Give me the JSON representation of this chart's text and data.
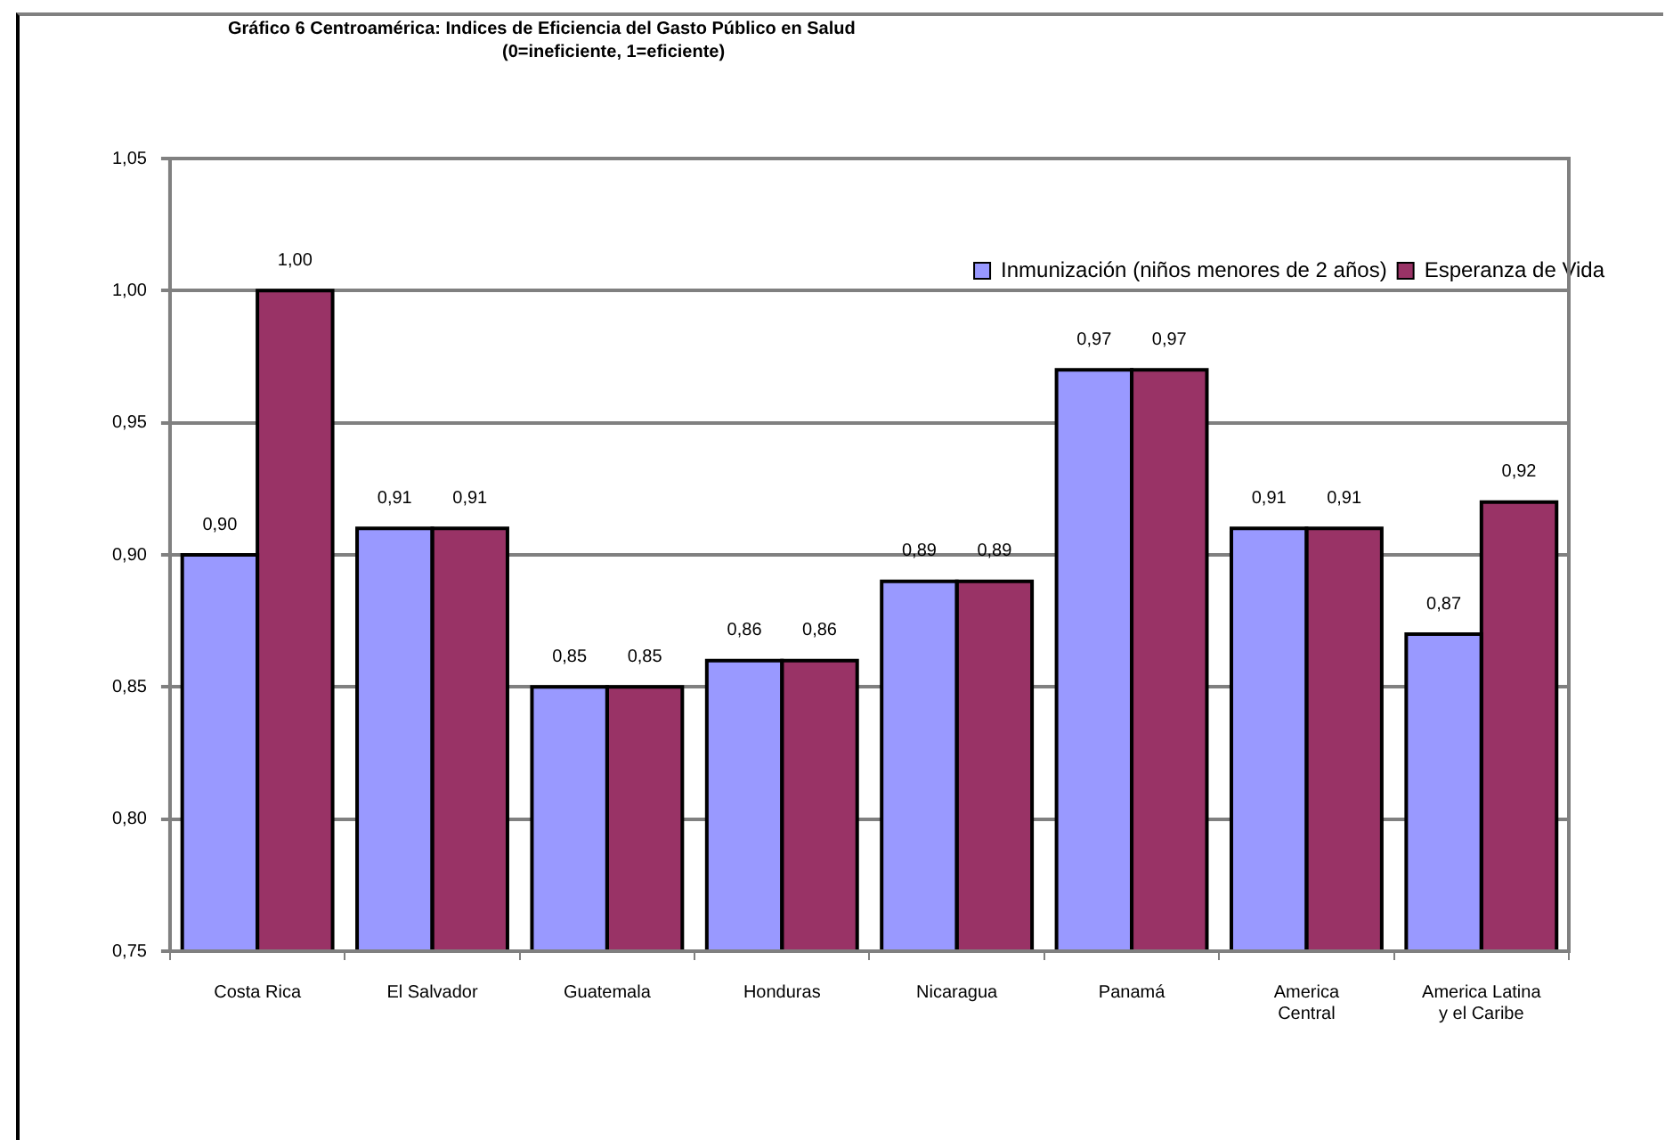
{
  "chart_data": {
    "type": "bar",
    "title": "Gráfico 6 Centroamérica: Indices de Eficiencia del Gasto Público en Salud",
    "subtitle": "(0=ineficiente, 1=eficiente)",
    "categories": [
      "Costa Rica",
      "El Salvador",
      "Guatemala",
      "Honduras",
      "Nicaragua",
      "Panamá",
      "America Central",
      "America Latina y el Caribe"
    ],
    "series": [
      {
        "name": "Inmunización (niños menores de 2 años)",
        "color": "#9999ff",
        "values": [
          0.9,
          0.91,
          0.85,
          0.86,
          0.89,
          0.97,
          0.91,
          0.87
        ],
        "value_labels": [
          "0,90",
          "0,91",
          "0,85",
          "0,86",
          "0,89",
          "0,97",
          "0,91",
          "0,87"
        ]
      },
      {
        "name": "Esperanza de Vida",
        "color": "#993366",
        "values": [
          1.0,
          0.91,
          0.85,
          0.86,
          0.89,
          0.97,
          0.91,
          0.92
        ],
        "value_labels": [
          "1,00",
          "0,91",
          "0,85",
          "0,86",
          "0,89",
          "0,97",
          "0,91",
          "0,92"
        ]
      }
    ],
    "ylim": [
      0.75,
      1.05
    ],
    "yticks": [
      {
        "value": 0.75,
        "label": "0,75"
      },
      {
        "value": 0.8,
        "label": "0,80"
      },
      {
        "value": 0.85,
        "label": "0,85"
      },
      {
        "value": 0.9,
        "label": "0,90"
      },
      {
        "value": 0.95,
        "label": "0,95"
      },
      {
        "value": 1.0,
        "label": "1,00"
      },
      {
        "value": 1.05,
        "label": "1,05"
      }
    ],
    "grid": "y",
    "legend": "top right"
  }
}
